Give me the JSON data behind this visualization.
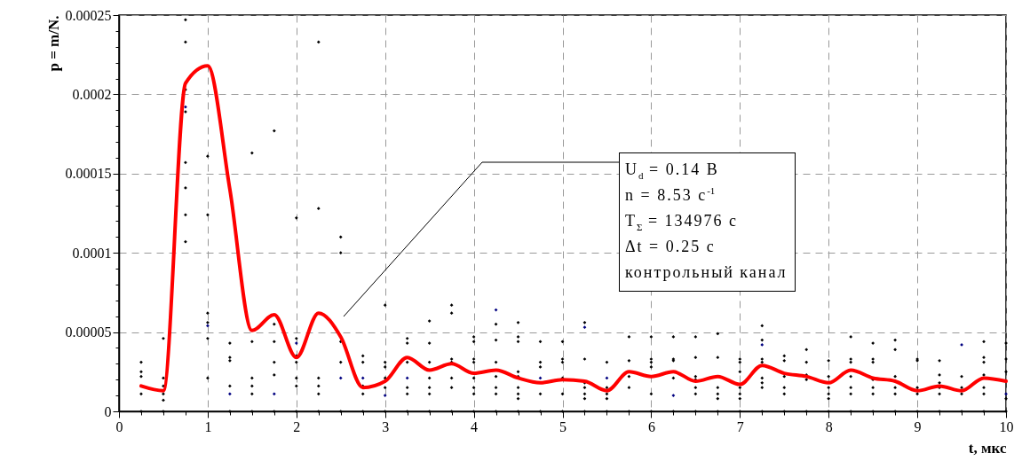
{
  "chart_data": {
    "type": "scatter",
    "xlabel": "t, мкс",
    "ylabel": "p = m/N.",
    "xlim": [
      0,
      10
    ],
    "ylim": [
      0,
      0.00025
    ],
    "xticks": [
      0,
      {
        "value": 0.25,
        "label": null
      },
      {
        "value": 0.5,
        "label": null
      },
      {
        "value": 0.75,
        "label": null
      },
      1,
      {
        "value": 1.25,
        "label": null
      },
      {
        "value": 1.5,
        "label": null
      },
      {
        "value": 1.75,
        "label": null
      },
      2,
      {
        "value": 2.25,
        "label": null
      },
      {
        "value": 2.5,
        "label": null
      },
      {
        "value": 2.75,
        "label": null
      },
      3,
      {
        "value": 3.25,
        "label": null
      },
      {
        "value": 3.5,
        "label": null
      },
      {
        "value": 3.75,
        "label": null
      },
      4,
      {
        "value": 4.25,
        "label": null
      },
      {
        "value": 4.5,
        "label": null
      },
      {
        "value": 4.75,
        "label": null
      },
      5,
      {
        "value": 5.25,
        "label": null
      },
      {
        "value": 5.5,
        "label": null
      },
      {
        "value": 5.75,
        "label": null
      },
      6,
      {
        "value": 6.25,
        "label": null
      },
      {
        "value": 6.5,
        "label": null
      },
      {
        "value": 6.75,
        "label": null
      },
      7,
      {
        "value": 7.25,
        "label": null
      },
      {
        "value": 7.5,
        "label": null
      },
      {
        "value": 7.75,
        "label": null
      },
      8,
      {
        "value": 8.25,
        "label": null
      },
      {
        "value": 8.5,
        "label": null
      },
      {
        "value": 8.75,
        "label": null
      },
      9,
      {
        "value": 9.25,
        "label": null
      },
      {
        "value": 9.5,
        "label": null
      },
      {
        "value": 9.75,
        "label": null
      },
      10
    ],
    "yticks": [
      0,
      {
        "value": 1e-05,
        "label": null
      },
      {
        "value": 2e-05,
        "label": null
      },
      {
        "value": 3e-05,
        "label": null
      },
      {
        "value": 4e-05,
        "label": null
      },
      {
        "value": 5e-05,
        "label": "0.00005"
      },
      {
        "value": 6e-05,
        "label": null
      },
      {
        "value": 7e-05,
        "label": null
      },
      {
        "value": 8e-05,
        "label": null
      },
      {
        "value": 9e-05,
        "label": null
      },
      0.0001,
      {
        "value": 0.00011,
        "label": null
      },
      {
        "value": 0.00012,
        "label": null
      },
      {
        "value": 0.00013,
        "label": null
      },
      {
        "value": 0.00014,
        "label": null
      },
      0.00015,
      {
        "value": 0.00016,
        "label": null
      },
      {
        "value": 0.00017,
        "label": null
      },
      {
        "value": 0.00018,
        "label": null
      },
      {
        "value": 0.00019,
        "label": null
      },
      0.0002,
      {
        "value": 0.00021,
        "label": null
      },
      {
        "value": 0.00022,
        "label": null
      },
      {
        "value": 0.00023,
        "label": null
      },
      {
        "value": 0.00024,
        "label": null
      },
      0.00025
    ],
    "grid": true,
    "annotations": [
      "U$_{d}$ = 0.14 В",
      "n = 8.53 с$^{-1}$",
      "T$_{Σ}$ = 134976 с",
      "Δt = 0.25 с",
      "контрольный канал"
    ],
    "series": [
      {
        "marker": "diamond",
        "color": "#000000",
        "x": [
          0.25,
          0.25,
          0.25,
          0.25,
          0.25,
          0.5,
          0.5,
          0.5,
          0.5,
          0.5,
          0.5,
          0.75,
          0.75,
          0.75,
          0.75,
          0.75,
          0.75,
          0.75,
          0.75,
          1,
          1,
          1,
          1,
          1,
          1,
          1.25,
          1.25,
          1.25,
          1.25,
          1.25,
          1.5,
          1.5,
          1.5,
          1.5,
          1.5,
          1.5,
          1.75,
          1.75,
          1.75,
          1.75,
          1.75,
          1.75,
          2,
          2,
          2,
          2,
          2,
          2,
          2,
          2.25,
          2.25,
          2.25,
          2.25,
          2.25,
          2.25,
          2.5,
          2.5,
          2.5,
          2.5,
          2.5,
          2.75,
          2.75,
          2.75,
          2.75,
          2.75,
          3,
          3,
          3,
          3,
          3,
          3,
          3.25,
          3.25,
          3.25,
          3.25,
          3.25,
          3.25,
          3.5,
          3.5,
          3.5,
          3.5,
          3.5,
          3.5,
          3.5,
          3.75,
          3.75,
          3.75,
          3.75,
          3.75,
          3.75,
          3.75,
          4,
          4,
          4,
          4,
          4,
          4,
          4,
          4,
          4.25,
          4.25,
          4.25,
          4.25,
          4.25,
          4.25,
          4.25,
          4.5,
          4.5,
          4.5,
          4.5,
          4.5,
          4.5,
          4.5,
          4.5,
          4.5,
          4.75,
          4.75,
          4.75,
          4.75,
          4.75,
          5,
          5,
          5,
          5,
          5,
          5,
          5.25,
          5.25,
          5.25,
          5.25,
          5.25,
          5.25,
          5.25,
          5.5,
          5.5,
          5.5,
          5.5,
          5.5,
          5.75,
          5.75,
          5.75,
          5.75,
          5.75,
          6,
          6,
          6,
          6,
          6,
          6,
          6.25,
          6.25,
          6.25,
          6.25,
          6.25,
          6.5,
          6.5,
          6.5,
          6.5,
          6.5,
          6.5,
          6.5,
          6.75,
          6.75,
          6.75,
          6.75,
          6.75,
          6.75,
          7,
          7,
          7,
          7,
          7,
          7,
          7,
          7.25,
          7.25,
          7.25,
          7.25,
          7.25,
          7.25,
          7.25,
          7.25,
          7.5,
          7.5,
          7.5,
          7.5,
          7.5,
          7.5,
          7.75,
          7.75,
          7.75,
          7.75,
          7.75,
          8,
          8,
          8,
          8,
          8,
          8,
          8.25,
          8.25,
          8.25,
          8.25,
          8.25,
          8.25,
          8.25,
          8.5,
          8.5,
          8.5,
          8.5,
          8.5,
          8.5,
          8.5,
          8.75,
          8.75,
          8.75,
          8.75,
          8.75,
          8.75,
          9,
          9,
          9,
          9,
          9,
          9.25,
          9.25,
          9.25,
          9.25,
          9.25,
          9.25,
          9.5,
          9.5,
          9.5,
          9.5,
          9.75,
          9.75,
          9.75,
          9.75,
          9.75,
          9.75,
          9.75,
          10,
          10,
          10,
          10,
          10
        ],
        "values": [
          3.1e-05,
          2.5e-05,
          2.2e-05,
          1.1e-05,
          0,
          4.6e-05,
          2.1e-05,
          1.6e-05,
          1.1e-05,
          7e-06,
          0,
          0.000247,
          0.000233,
          0.000203,
          0.000189,
          0.000157,
          0.000141,
          0.000124,
          0.000107,
          0.000161,
          0.000124,
          6.2e-05,
          5.6e-05,
          4.6e-05,
          2.1e-05,
          4.3e-05,
          3.4e-05,
          3.2e-05,
          1.6e-05,
          0,
          0.000163,
          4.4e-05,
          2.1e-05,
          1.6e-05,
          1.1e-05,
          0,
          0.000177,
          5.5e-05,
          4.4e-05,
          3.1e-05,
          2.3e-05,
          0,
          0.000122,
          4.6e-05,
          3.5e-05,
          3.1e-05,
          2.1e-05,
          1.6e-05,
          0,
          0.000233,
          0.000128,
          2.1e-05,
          1.6e-05,
          1.1e-05,
          0,
          0.00011,
          0.0001,
          4.4e-05,
          3.1e-05,
          0,
          3.5e-05,
          3.1e-05,
          1.6e-05,
          1.1e-05,
          0,
          6.7e-05,
          3.1e-05,
          2.8e-05,
          2.1e-05,
          1.5e-05,
          0,
          4.6e-05,
          4.3e-05,
          3.1e-05,
          1.5e-05,
          1.1e-05,
          0,
          5.7e-05,
          4.3e-05,
          3.1e-05,
          2.1e-05,
          1.5e-05,
          1.1e-05,
          0,
          6.7e-05,
          6.2e-05,
          3.3e-05,
          3.1e-05,
          2.1e-05,
          1.5e-05,
          0,
          4.7e-05,
          4.4e-05,
          3.3e-05,
          3.1e-05,
          2.1e-05,
          1.5e-05,
          1.1e-05,
          0,
          5.5e-05,
          4.5e-05,
          3.1e-05,
          2.2e-05,
          1.5e-05,
          1.1e-05,
          0,
          5.6e-05,
          4.7e-05,
          4.4e-05,
          2.5e-05,
          2.2e-05,
          1.5e-05,
          1.1e-05,
          8e-06,
          0,
          4.4e-05,
          3.1e-05,
          2.8e-05,
          1.1e-05,
          0,
          4.4e-05,
          3.3e-05,
          3.1e-05,
          2.1e-05,
          1.1e-05,
          0,
          5.6e-05,
          3.3e-05,
          1.8e-05,
          1.5e-05,
          1.1e-05,
          8e-06,
          0,
          3.1e-05,
          1.5e-05,
          1.1e-05,
          8e-06,
          0,
          4.7e-05,
          3.2e-05,
          2.2e-05,
          1.5e-05,
          0,
          4.7e-05,
          3.3e-05,
          3.1e-05,
          2.8e-05,
          1.1e-05,
          0,
          4.7e-05,
          3.3e-05,
          3.2e-05,
          2.1e-05,
          0,
          4.7e-05,
          3.4e-05,
          2.2e-05,
          2e-05,
          1.5e-05,
          1.1e-05,
          0,
          4.9e-05,
          3.4e-05,
          1.5e-05,
          1.1e-05,
          8e-06,
          0,
          3.3e-05,
          3.1e-05,
          2.5e-05,
          1.5e-05,
          1.1e-05,
          8e-06,
          0,
          5.4e-05,
          4.5e-05,
          3.3e-05,
          3.1e-05,
          2.1e-05,
          1.8e-05,
          1.5e-05,
          0,
          3.5e-05,
          3.2e-05,
          2.2e-05,
          1.5e-05,
          1.1e-05,
          0,
          3.9e-05,
          3.1e-05,
          2.3e-05,
          2e-05,
          0,
          3.2e-05,
          2.2e-05,
          1.5e-05,
          1.1e-05,
          8e-06,
          0,
          4.7e-05,
          3.3e-05,
          3.1e-05,
          2.2e-05,
          1.5e-05,
          1.1e-05,
          0,
          4.3e-05,
          3.3e-05,
          3.1e-05,
          2e-05,
          1.5e-05,
          1.1e-05,
          0,
          4.5e-05,
          3.9e-05,
          2.2e-05,
          1.5e-05,
          1.1e-05,
          0,
          3.3e-05,
          3.2e-05,
          1.5e-05,
          1.1e-05,
          0,
          3.2e-05,
          2.3e-05,
          1.8e-05,
          1.5e-05,
          1.1e-05,
          0,
          2.2e-05,
          1.5e-05,
          1.1e-05,
          0,
          4.4e-05,
          3.4e-05,
          3.1e-05,
          2.3e-05,
          1.5e-05,
          1.1e-05,
          0,
          4.3e-05,
          3.3e-05,
          2.5e-05,
          8e-06,
          0
        ]
      },
      {
        "marker": "diamond",
        "color": "#000080",
        "x": [
          0.75,
          1,
          1.25,
          1.75,
          2,
          2.5,
          2.75,
          3,
          3.25,
          4.25,
          4.75,
          5.25,
          5.5,
          6.25,
          7.25,
          9.5,
          10
        ],
        "values": [
          0.000192,
          5.4e-05,
          1.1e-05,
          1.1e-05,
          4.3e-05,
          2.1e-05,
          2.1e-05,
          1e-05,
          2.1e-05,
          6.4e-05,
          2.1e-05,
          5.3e-05,
          2.1e-05,
          1e-05,
          4.2e-05,
          4.2e-05,
          1.1e-05
        ]
      },
      {
        "type": "line",
        "marker": "none",
        "line_style": "solid",
        "color": "#ff0000",
        "x": [
          0.25,
          0.5,
          0.75,
          1,
          1.25,
          1.5,
          1.75,
          2,
          2.25,
          2.5,
          2.75,
          3,
          3.25,
          3.5,
          3.75,
          4,
          4.25,
          4.5,
          4.75,
          5,
          5.25,
          5.5,
          5.75,
          6,
          6.25,
          6.5,
          6.75,
          7,
          7.25,
          7.5,
          7.75,
          8,
          8.25,
          8.5,
          8.75,
          9,
          9.25,
          9.5,
          9.75,
          10
        ],
        "values": [
          1.6e-05,
          1.3e-05,
          0.000207,
          0.000218,
          0.00014,
          5.1e-05,
          6.1e-05,
          3.4e-05,
          6.2e-05,
          4.7e-05,
          1.5e-05,
          1.9e-05,
          3.4e-05,
          2.6e-05,
          3e-05,
          2.4e-05,
          2.6e-05,
          2.1e-05,
          1.8e-05,
          2e-05,
          1.9e-05,
          1.3e-05,
          2.5e-05,
          2.2e-05,
          2.5e-05,
          1.9e-05,
          2.2e-05,
          1.7e-05,
          2.9e-05,
          2.4e-05,
          2.2e-05,
          1.8e-05,
          2.6e-05,
          2.1e-05,
          1.9e-05,
          1.3e-05,
          1.6e-05,
          1.3e-05,
          2.1e-05,
          1.9e-05
        ]
      }
    ]
  }
}
